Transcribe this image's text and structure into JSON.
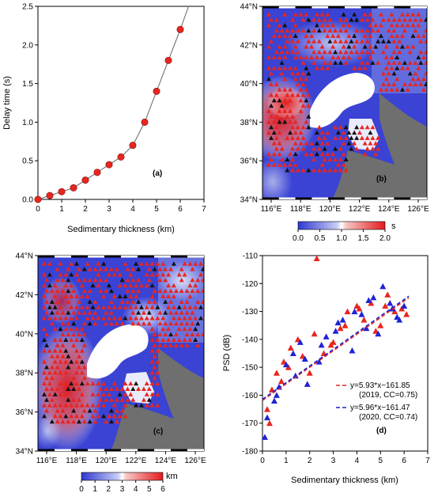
{
  "colors": {
    "marker": "#e8251f",
    "line": "#666666",
    "blue_sym": "#1f22d6",
    "red_sym": "#e8251f",
    "map_low": "#2e37d0",
    "map_mid": "#ffffff",
    "map_high": "#e41a1c",
    "land": "#6f6f6f",
    "sea": "#ffffff"
  },
  "panel_a": {
    "label": "(a)",
    "xlabel": "Sedimentary thickness (km)",
    "ylabel": "Delay time (s)",
    "xticks": [
      "0",
      "1",
      "2",
      "3",
      "4",
      "5",
      "6",
      "7"
    ],
    "yticks": [
      "0.0",
      "0.5",
      "1.0",
      "1.5",
      "2.0",
      "2.5"
    ]
  },
  "panel_b": {
    "label": "(b)",
    "lat_ticks": [
      "34°N",
      "36°N",
      "38°N",
      "40°N",
      "42°N",
      "44°N"
    ],
    "lon_ticks": [
      "116°E",
      "118°E",
      "120°E",
      "122°E",
      "124°E",
      "126°E"
    ],
    "colorbar_ticks": [
      "0.0",
      "0.5",
      "1.0",
      "1.5",
      "2.0"
    ],
    "colorbar_unit": "s"
  },
  "panel_c": {
    "label": "(c)",
    "lat_ticks": [
      "34°N",
      "36°N",
      "38°N",
      "40°N",
      "42°N",
      "44°N"
    ],
    "lon_ticks": [
      "116°E",
      "118°E",
      "120°E",
      "122°E",
      "124°E",
      "126°E"
    ],
    "colorbar_ticks": [
      "0",
      "1",
      "2",
      "3",
      "4",
      "5",
      "6"
    ],
    "colorbar_unit": "km"
  },
  "panel_d": {
    "label": "(d)",
    "xlabel": "Sedimentary thickness (km)",
    "ylabel": "PSD (dB)",
    "xticks": [
      "0",
      "1",
      "2",
      "3",
      "4",
      "5",
      "6",
      "7"
    ],
    "yticks": [
      "-110",
      "-120",
      "-130",
      "-140",
      "-150",
      "-160",
      "-170",
      "-180"
    ],
    "legend": [
      {
        "eq": "y=5.93*x−161.85",
        "note": "(2019, CC=0.75)"
      },
      {
        "eq": "y=5.96*x−161.47",
        "note": "(2020, CC=0.74)"
      }
    ]
  },
  "chart_data": [
    {
      "type": "line",
      "xlabel": "Sedimentary thickness (km)",
      "ylabel": "Delay time (s)",
      "xlim": [
        0,
        7
      ],
      "ylim": [
        0,
        2.5
      ],
      "series": [
        {
          "x": [
            0,
            0.5,
            1,
            1.5,
            2,
            2.5,
            3,
            3.5,
            4,
            4.5,
            5,
            5.5,
            6
          ],
          "y": [
            0,
            0.05,
            0.1,
            0.15,
            0.25,
            0.35,
            0.45,
            0.55,
            0.7,
            1.0,
            1.4,
            1.8,
            2.2
          ]
        }
      ]
    },
    {
      "type": "scatter",
      "xlabel": "Sedimentary thickness (km)",
      "ylabel": "PSD (dB)",
      "xlim": [
        0,
        7
      ],
      "ylim": [
        -180,
        -110
      ],
      "series": [
        {
          "name": "y=5.93*x−161.85",
          "x": [
            0.2,
            0.4,
            0.6,
            0.9,
            1.2,
            1.5,
            2.0,
            2.3,
            2.6,
            3.0,
            3.3,
            3.6,
            4.0,
            4.3,
            4.6,
            5.0,
            5.3,
            5.6,
            5.9,
            6.1,
            0.3,
            0.8,
            1.1,
            1.7,
            2.2,
            2.9,
            3.5,
            4.1,
            4.8,
            5.2
          ],
          "y": [
            -165,
            -158,
            -152,
            -148,
            -143,
            -140,
            -152,
            -111,
            -145,
            -141,
            -136,
            -130,
            -128,
            -133,
            -127,
            -135,
            -124,
            -130,
            -129,
            -131,
            -170,
            -155,
            -150,
            -146,
            -138,
            -142,
            -135,
            -129,
            -137,
            -128
          ]
        },
        {
          "name": "y=5.96*x−161.47",
          "x": [
            0.1,
            0.5,
            0.7,
            1.0,
            1.3,
            1.6,
            1.9,
            2.4,
            2.7,
            3.1,
            3.4,
            3.8,
            4.2,
            4.5,
            4.9,
            5.1,
            5.4,
            5.7,
            6.0,
            0.2,
            0.6,
            1.4,
            1.8,
            2.5,
            3.2,
            3.9,
            4.4,
            4.7,
            5.5,
            5.8
          ],
          "y": [
            -175,
            -162,
            -157,
            -149,
            -145,
            -141,
            -156,
            -148,
            -139,
            -137,
            -133,
            -144,
            -131,
            -126,
            -138,
            -121,
            -127,
            -132,
            -128,
            -168,
            -160,
            -153,
            -147,
            -142,
            -134,
            -130,
            -136,
            -125,
            -129,
            -133
          ]
        }
      ]
    }
  ]
}
